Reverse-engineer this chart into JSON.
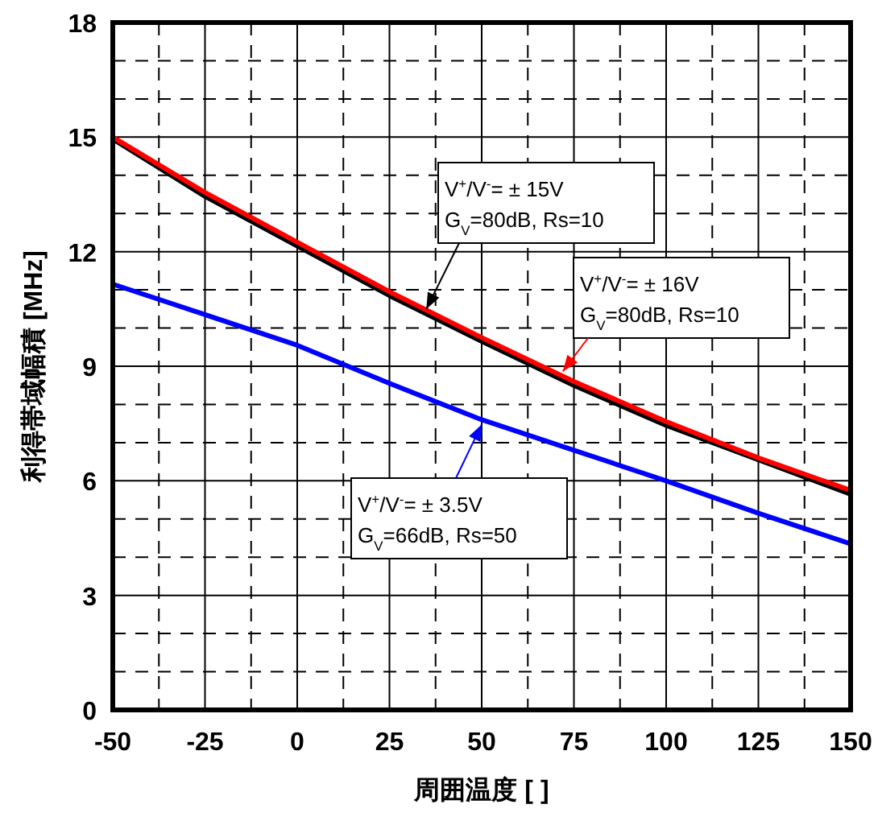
{
  "chart_data": {
    "type": "line",
    "xlabel": "周囲温度 [ ]",
    "ylabel": "利得帯域幅積 [MHz]",
    "x": [
      -50,
      -25,
      0,
      25,
      50,
      75,
      100,
      125,
      150
    ],
    "series": [
      {
        "name": "V$^{+}$/V$^{-}$= ± 15V\nG$_{V}$=80dB, Rs=10",
        "color": "#000000",
        "values": [
          14.95,
          13.45,
          12.15,
          10.85,
          9.65,
          8.5,
          7.45,
          6.55,
          5.65
        ]
      },
      {
        "name": "V$^{+}$/V$^{-}$= ± 16V\nG$_{V}$=80dB, Rs=10",
        "color": "#ff0000",
        "values": [
          15.0,
          13.55,
          12.25,
          10.95,
          9.75,
          8.6,
          7.55,
          6.6,
          5.75
        ]
      },
      {
        "name": "V$^{+}$/V$^{-}$= ± 3.5V\nG$_{V}$=66dB, Rs=50",
        "color": "#0000ff",
        "values": [
          11.15,
          10.35,
          9.55,
          8.55,
          7.6,
          6.8,
          6.0,
          5.15,
          4.35
        ]
      }
    ],
    "xlim": [
      -50,
      150
    ],
    "xticks": [
      -50,
      -25,
      0,
      25,
      50,
      75,
      100,
      125,
      150
    ],
    "ylim": [
      0,
      18
    ],
    "yticks": [
      0,
      3,
      6,
      9,
      12,
      15,
      18
    ],
    "grid": true,
    "marker": "none",
    "line_style": "solid"
  }
}
